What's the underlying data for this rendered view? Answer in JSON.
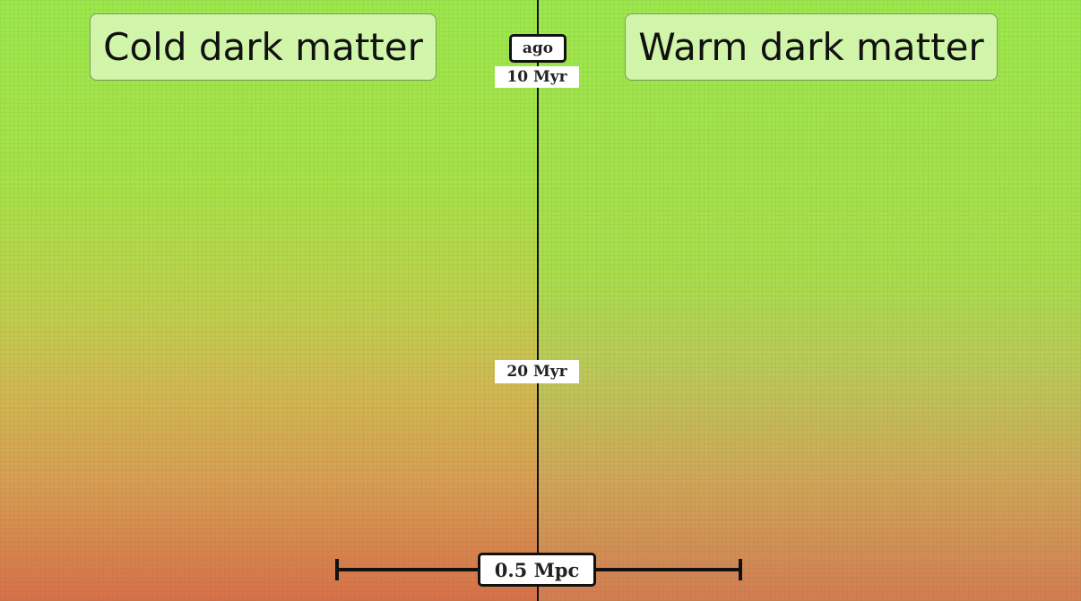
{
  "panels": [
    {
      "label": "Cold dark matter"
    },
    {
      "label": "Warm dark matter"
    }
  ],
  "time_axis": {
    "title": "ago",
    "ticks": [
      "10 Myr",
      "20 Myr"
    ]
  },
  "scale_bar": {
    "label": "0.5 Mpc"
  }
}
